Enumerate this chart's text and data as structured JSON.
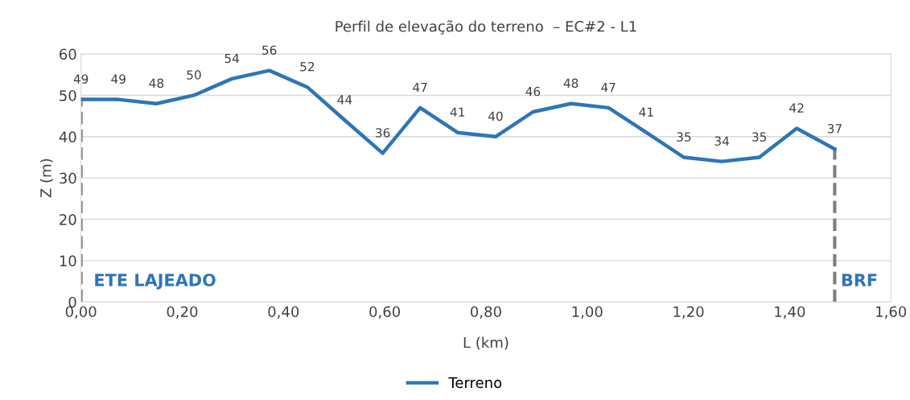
{
  "chart_data": {
    "type": "line",
    "title": "Perfil de elevação do terreno  – EC#2 - L1",
    "xlabel": "L (km)",
    "ylabel": "Z (m)",
    "x": [
      0,
      0.074,
      0.149,
      0.223,
      0.298,
      0.372,
      0.447,
      0.521,
      0.596,
      0.67,
      0.744,
      0.819,
      0.893,
      0.968,
      1.042,
      1.117,
      1.191,
      1.266,
      1.34,
      1.414,
      1.489
    ],
    "series": [
      {
        "name": "Terreno",
        "color": "#2e75b6",
        "values": [
          49,
          49,
          48,
          50,
          54,
          56,
          52,
          44,
          36,
          47,
          41,
          40,
          46,
          48,
          47,
          41,
          35,
          34,
          35,
          42,
          37
        ]
      }
    ],
    "xlim": [
      0,
      1.6
    ],
    "xticks": [
      {
        "value": 0,
        "label": "0,00"
      },
      {
        "value": 0.2,
        "label": "0,20"
      },
      {
        "value": 0.4,
        "label": "0,40"
      },
      {
        "value": 0.6,
        "label": "0,60"
      },
      {
        "value": 0.8,
        "label": "0,80"
      },
      {
        "value": 1.0,
        "label": "1,00"
      },
      {
        "value": 1.2,
        "label": "1,20"
      },
      {
        "value": 1.4,
        "label": "1,40"
      },
      {
        "value": 1.6,
        "label": "1,60"
      }
    ],
    "ylim": [
      0,
      60
    ],
    "yticks": [
      0,
      10,
      20,
      30,
      40,
      50,
      60
    ],
    "ref_lines": [
      {
        "axis": "x",
        "value": 0,
        "label": "ETE LAJEADO",
        "color": "#7f7f7f",
        "line_style": "dashed"
      },
      {
        "axis": "x",
        "value": 1.489,
        "label": "BRF",
        "color": "#7f7f7f",
        "line_style": "dashed"
      }
    ],
    "data_labels": true,
    "grid": "y",
    "legend": "bottom",
    "marker": "none",
    "line_style": "solid"
  }
}
